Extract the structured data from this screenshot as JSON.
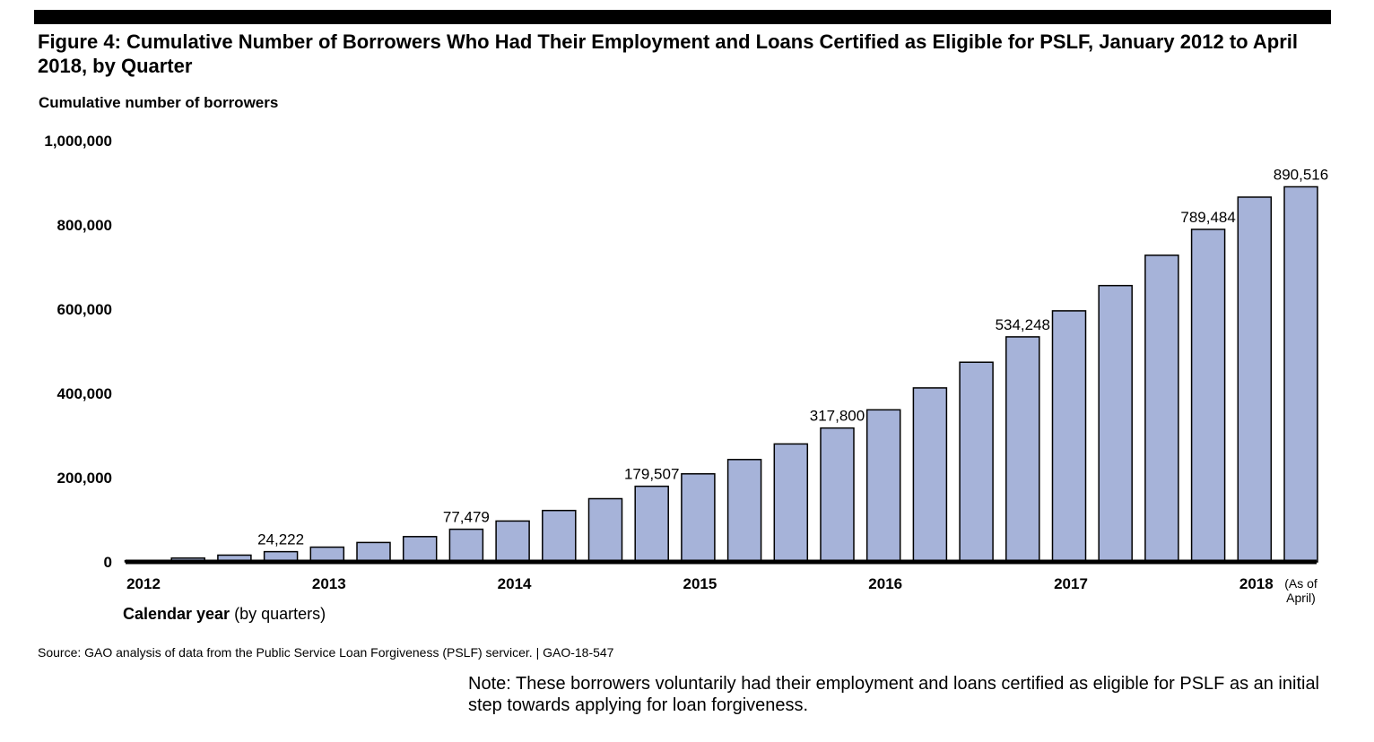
{
  "title": "Figure 4: Cumulative Number of Borrowers Who Had Their Employment and Loans Certified as Eligible for PSLF, January 2012 to April 2018, by Quarter",
  "source": "Source: GAO analysis of data from the Public Service Loan Forgiveness (PSLF) servicer.  |  GAO-18-547",
  "note": "Note: These borrowers voluntarily had their employment and loans certified as eligible for PSLF as an initial step towards applying for loan forgiveness.",
  "chart_data": {
    "type": "bar",
    "title": "Figure 4: Cumulative Number of Borrowers Who Had Their Employment and Loans Certified as Eligible for PSLF, January 2012 to April 2018, by Quarter",
    "ylabel": "Cumulative number of borrowers",
    "xlabel_bold": "Calendar year",
    "xlabel_rest": " (by quarters)",
    "ylim": [
      0,
      1000000
    ],
    "yticks": [
      0,
      200000,
      400000,
      600000,
      800000,
      1000000
    ],
    "ytick_labels": [
      "0",
      "200,000",
      "400,000",
      "600,000",
      "800,000",
      "1,000,000"
    ],
    "year_labels": [
      "2012",
      "2013",
      "2014",
      "2015",
      "2016",
      "2017",
      "2018"
    ],
    "last_note": [
      "(As of",
      "April)"
    ],
    "values": [
      3000,
      9000,
      16000,
      24222,
      35000,
      46000,
      60000,
      77479,
      97000,
      122000,
      150000,
      179507,
      209000,
      243000,
      280000,
      317800,
      361000,
      413000,
      474000,
      534248,
      596000,
      656000,
      728000,
      789484,
      866000,
      890516
    ],
    "data_labels": [
      "",
      "",
      "",
      "24,222",
      "",
      "",
      "",
      "77,479",
      "",
      "",
      "",
      "179,507",
      "",
      "",
      "",
      "317,800",
      "",
      "",
      "",
      "534,248",
      "",
      "",
      "",
      "789,484",
      "",
      "890,516"
    ],
    "bar_color": "#a6b3d9",
    "grid": false
  }
}
